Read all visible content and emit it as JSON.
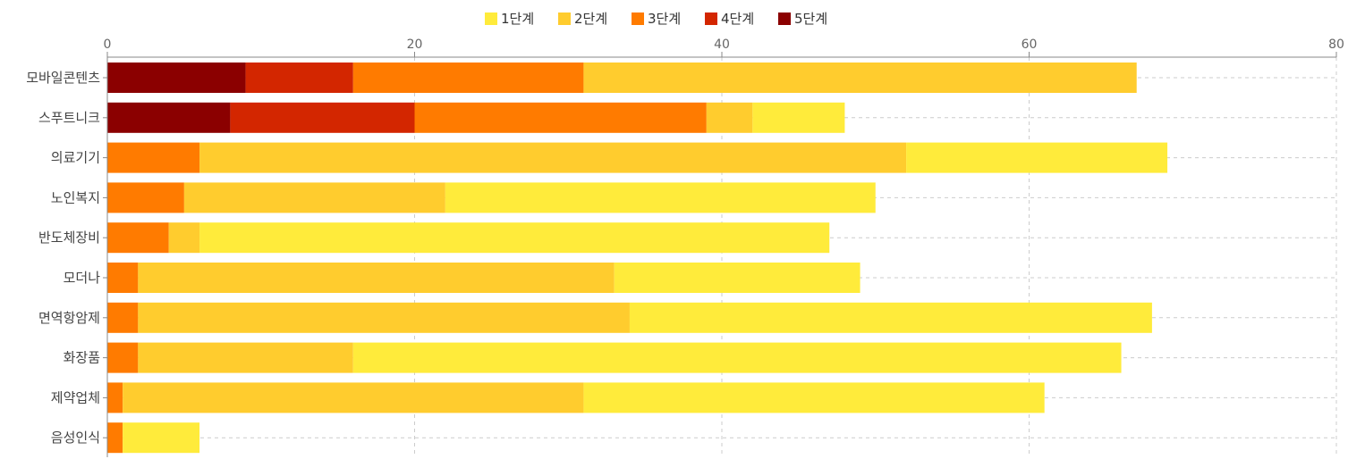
{
  "chart_data": {
    "type": "bar",
    "orientation": "horizontal",
    "stacked": true,
    "categories": [
      "모바일콘텐츠",
      "스푸트니크",
      "의료기기",
      "노인복지",
      "반도체장비",
      "모더나",
      "면역항암제",
      "화장품",
      "제약업체",
      "음성인식"
    ],
    "series": [
      {
        "name": "3단계",
        "color": "#ff7b00",
        "values": [
          15,
          19,
          6,
          5,
          4,
          2,
          2,
          2,
          1,
          1
        ]
      },
      {
        "name": "2단계",
        "color": "#ffcc2e",
        "values": [
          36,
          3,
          46,
          17,
          2,
          31,
          32,
          14,
          30,
          0
        ]
      },
      {
        "name": "1단계",
        "color": "#ffeb3b",
        "values": [
          0,
          6,
          17,
          28,
          41,
          16,
          34,
          50,
          30,
          5
        ]
      },
      {
        "name": "4단계",
        "color": "#d32600",
        "values": [
          7,
          12,
          0,
          0,
          0,
          0,
          0,
          0,
          0,
          0
        ]
      },
      {
        "name": "5단계",
        "color": "#8b0000",
        "values": [
          9,
          8,
          0,
          0,
          0,
          0,
          0,
          0,
          0,
          0
        ]
      }
    ],
    "legend_order": [
      "1단계",
      "2단계",
      "3단계",
      "4단계",
      "5단계"
    ],
    "stack_order": [
      "5단계",
      "4단계",
      "3단계",
      "2단계",
      "1단계"
    ],
    "xlim": [
      0,
      80
    ],
    "xticks": [
      0,
      20,
      40,
      60,
      80
    ],
    "x_axis_position": "top",
    "legend_position": "top-center",
    "grid": true
  }
}
